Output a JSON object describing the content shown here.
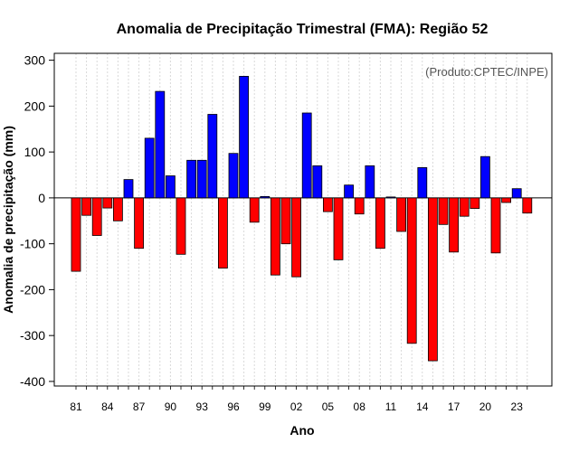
{
  "chart_data": {
    "type": "bar",
    "title": "Anomalia de Precipitação Trimestral (FMA): Região 52",
    "xlabel": "Ano",
    "ylabel": "Anomalia de precipitação (mm)",
    "annotation": "(Produto:CPTEC/INPE)",
    "ylim": [
      -410,
      315
    ],
    "yticks": [
      -400,
      -300,
      -200,
      -100,
      0,
      100,
      200,
      300
    ],
    "xtick_labels": [
      "81",
      "84",
      "87",
      "90",
      "93",
      "96",
      "99",
      "02",
      "05",
      "08",
      "11",
      "14",
      "17",
      "20",
      "23"
    ],
    "xtick_indices": [
      0,
      3,
      6,
      9,
      12,
      15,
      18,
      21,
      24,
      27,
      30,
      33,
      36,
      39,
      42
    ],
    "years": [
      1981,
      1982,
      1983,
      1984,
      1985,
      1986,
      1987,
      1988,
      1989,
      1990,
      1991,
      1992,
      1993,
      1994,
      1995,
      1996,
      1997,
      1998,
      1999,
      2000,
      2001,
      2002,
      2003,
      2004,
      2005,
      2006,
      2007,
      2008,
      2009,
      2010,
      2011,
      2012,
      2013,
      2014,
      2015,
      2016,
      2017,
      2018,
      2019,
      2020,
      2021,
      2022,
      2023,
      2024
    ],
    "values": [
      -160,
      -38,
      -82,
      -22,
      -50,
      40,
      -110,
      130,
      232,
      48,
      -123,
      82,
      82,
      182,
      -153,
      97,
      265,
      -53,
      3,
      -168,
      -100,
      -172,
      185,
      70,
      -30,
      -135,
      28,
      -35,
      70,
      -110,
      2,
      -73,
      -317,
      66,
      -355,
      -58,
      -118,
      -40,
      -23,
      90,
      -120,
      -10,
      20,
      -33
    ],
    "grid": true,
    "legend": "none",
    "colors": {
      "positive": "#0000ff",
      "negative": "#ff0000",
      "grid": "#d9d9d9",
      "axis": "#000000",
      "annotation": "#555555"
    }
  }
}
